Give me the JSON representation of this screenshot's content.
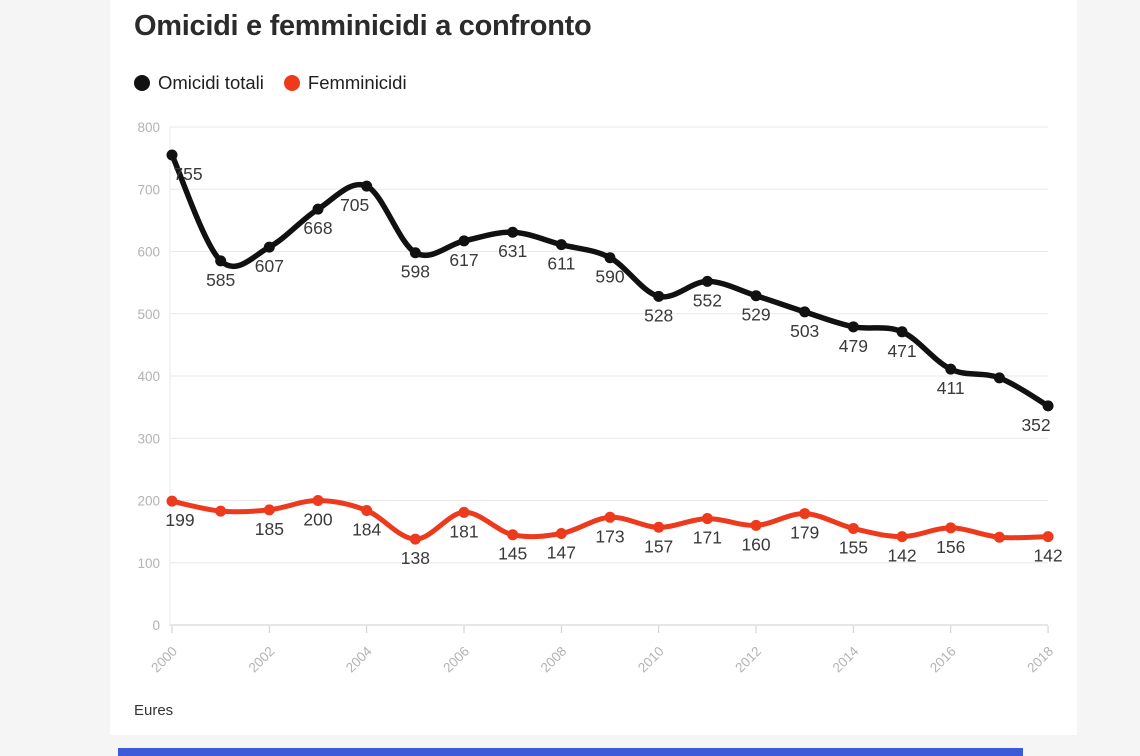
{
  "title": "Omicidi e femminicidi a confronto",
  "legend": [
    {
      "label": "Omicidi totali",
      "color": "#111111"
    },
    {
      "label": "Femminicidi",
      "color": "#ee3a1c"
    }
  ],
  "source": "Eures",
  "chart_data": {
    "type": "line",
    "title": "Omicidi e femminicidi a confronto",
    "x": [
      2000,
      2001,
      2002,
      2003,
      2004,
      2005,
      2006,
      2007,
      2008,
      2009,
      2010,
      2011,
      2012,
      2013,
      2014,
      2015,
      2016,
      2017,
      2018
    ],
    "x_tick_labels": [
      "2000",
      "2002",
      "2004",
      "2006",
      "2008",
      "2010",
      "2012",
      "2014",
      "2016",
      "2018"
    ],
    "y_ticks": [
      0,
      100,
      200,
      300,
      400,
      500,
      600,
      700,
      800
    ],
    "ylim": [
      0,
      800
    ],
    "grid": "horizontal",
    "legend_position": "top-left",
    "xlabel": "",
    "ylabel": "",
    "series": [
      {
        "name": "Omicidi totali",
        "color": "#111111",
        "values": [
          755,
          585,
          607,
          668,
          705,
          598,
          617,
          631,
          611,
          590,
          528,
          552,
          529,
          503,
          479,
          471,
          411,
          397,
          352
        ],
        "point_labels": [
          "755",
          "585",
          "607",
          "668",
          "705",
          "598",
          "617",
          "631",
          "611",
          "590",
          "528",
          "552",
          "529",
          "503",
          "479",
          "471",
          "411",
          null,
          "352"
        ]
      },
      {
        "name": "Femminicidi",
        "color": "#ee3a1c",
        "values": [
          199,
          183,
          185,
          200,
          184,
          138,
          181,
          145,
          147,
          173,
          157,
          171,
          160,
          179,
          155,
          142,
          156,
          141,
          142
        ],
        "point_labels": [
          "199",
          null,
          "185",
          "200",
          "184",
          "138",
          "181",
          "145",
          "147",
          "173",
          "157",
          "171",
          "160",
          "179",
          "155",
          "142",
          "156",
          null,
          "142"
        ]
      }
    ],
    "source": "Eures"
  },
  "colors": {
    "page_bg": "#f5f5f5",
    "card_bg": "#ffffff",
    "grid": "#e9e9e9",
    "axis": "#cccccc",
    "tick_label": "#b3b3b3",
    "data_label": "#3a3a3a",
    "accent_bottom_bar": "#3b5bdb"
  }
}
